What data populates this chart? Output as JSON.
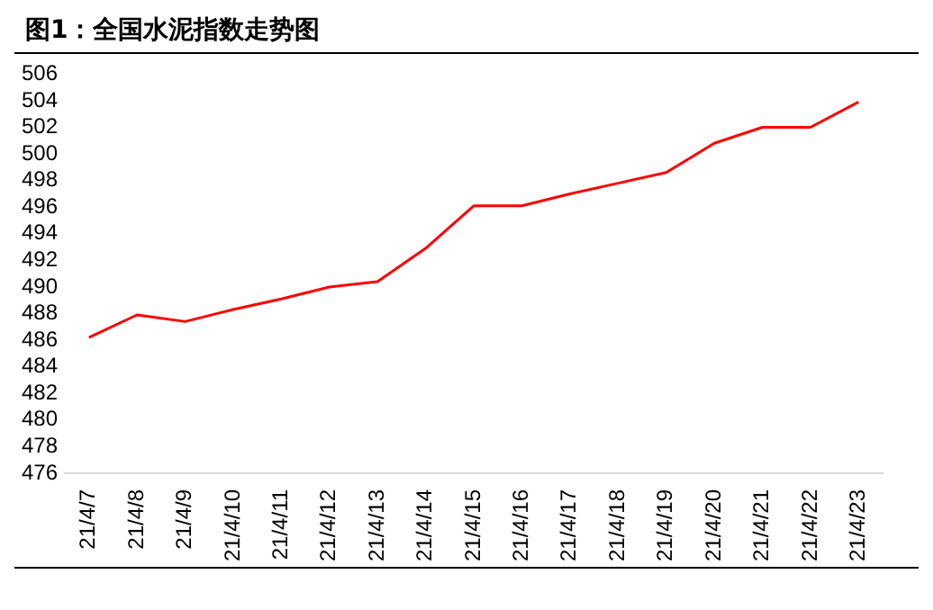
{
  "chart_data": {
    "type": "line",
    "title": "图1：全国水泥指数走势图",
    "categories": [
      "21/4/7",
      "21/4/8",
      "21/4/9",
      "21/4/10",
      "21/4/11",
      "21/4/12",
      "21/4/13",
      "21/4/14",
      "21/4/15",
      "21/4/16",
      "21/4/17",
      "21/4/18",
      "21/4/19",
      "21/4/20",
      "21/4/21",
      "21/4/22",
      "21/4/23"
    ],
    "series": [
      {
        "color": "#ff0000",
        "values": [
          486.2,
          487.9,
          487.4,
          488.3,
          489.1,
          490.0,
          490.4,
          492.9,
          496.1,
          496.1,
          497.0,
          497.8,
          498.6,
          500.8,
          502.0,
          502.0,
          503.9
        ]
      }
    ],
    "ylim": [
      476,
      506
    ],
    "yticks": [
      476,
      478,
      480,
      482,
      484,
      486,
      488,
      490,
      492,
      494,
      496,
      498,
      500,
      502,
      504,
      506
    ],
    "grid": false,
    "legend": false,
    "marker": "none",
    "line_style": "solid"
  }
}
